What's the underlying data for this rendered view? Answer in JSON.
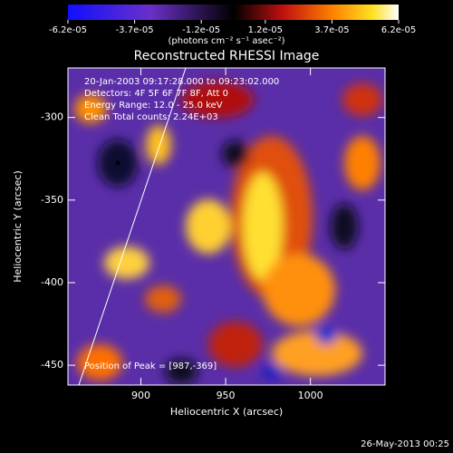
{
  "chart_data": {
    "type": "image",
    "title": "Reconstructed RHESSI Image",
    "xlabel": "Heliocentric X (arcsec)",
    "ylabel": "Heliocentric Y (arcsec)",
    "xlim": [
      857,
      1044
    ],
    "ylim": [
      -462,
      -270
    ],
    "xticks": [
      900,
      950,
      1000
    ],
    "yticks": [
      -300,
      -350,
      -400,
      -450
    ],
    "annotations": [
      "20-Jan-2003 09:17:28.000 to 09:23:02.000",
      "Detectors: 4F 5F 6F 7F 8F, Att 0",
      "Energy Range: 12.0 - 25.0 keV",
      "Clean     Total counts: 2.24E+03"
    ],
    "peak_label": "Position of Peak = [987,-369]",
    "colorbar": {
      "label": "(photons cm⁻² s⁻¹ asec⁻²)",
      "lim": [
        -6.2e-05,
        6.2e-05
      ],
      "ticks": [
        {
          "value": -6.2e-05,
          "label": "-6.2e-05"
        },
        {
          "value": -3.7e-05,
          "label": "-3.7e-05"
        },
        {
          "value": -1.2e-05,
          "label": "-1.2e-05"
        },
        {
          "value": 1.2e-05,
          "label": "1.2e-05"
        },
        {
          "value": 3.7e-05,
          "label": "3.7e-05"
        },
        {
          "value": 6.2e-05,
          "label": "6.2e-05"
        }
      ]
    },
    "footer": "26-May-2013 00:25"
  }
}
